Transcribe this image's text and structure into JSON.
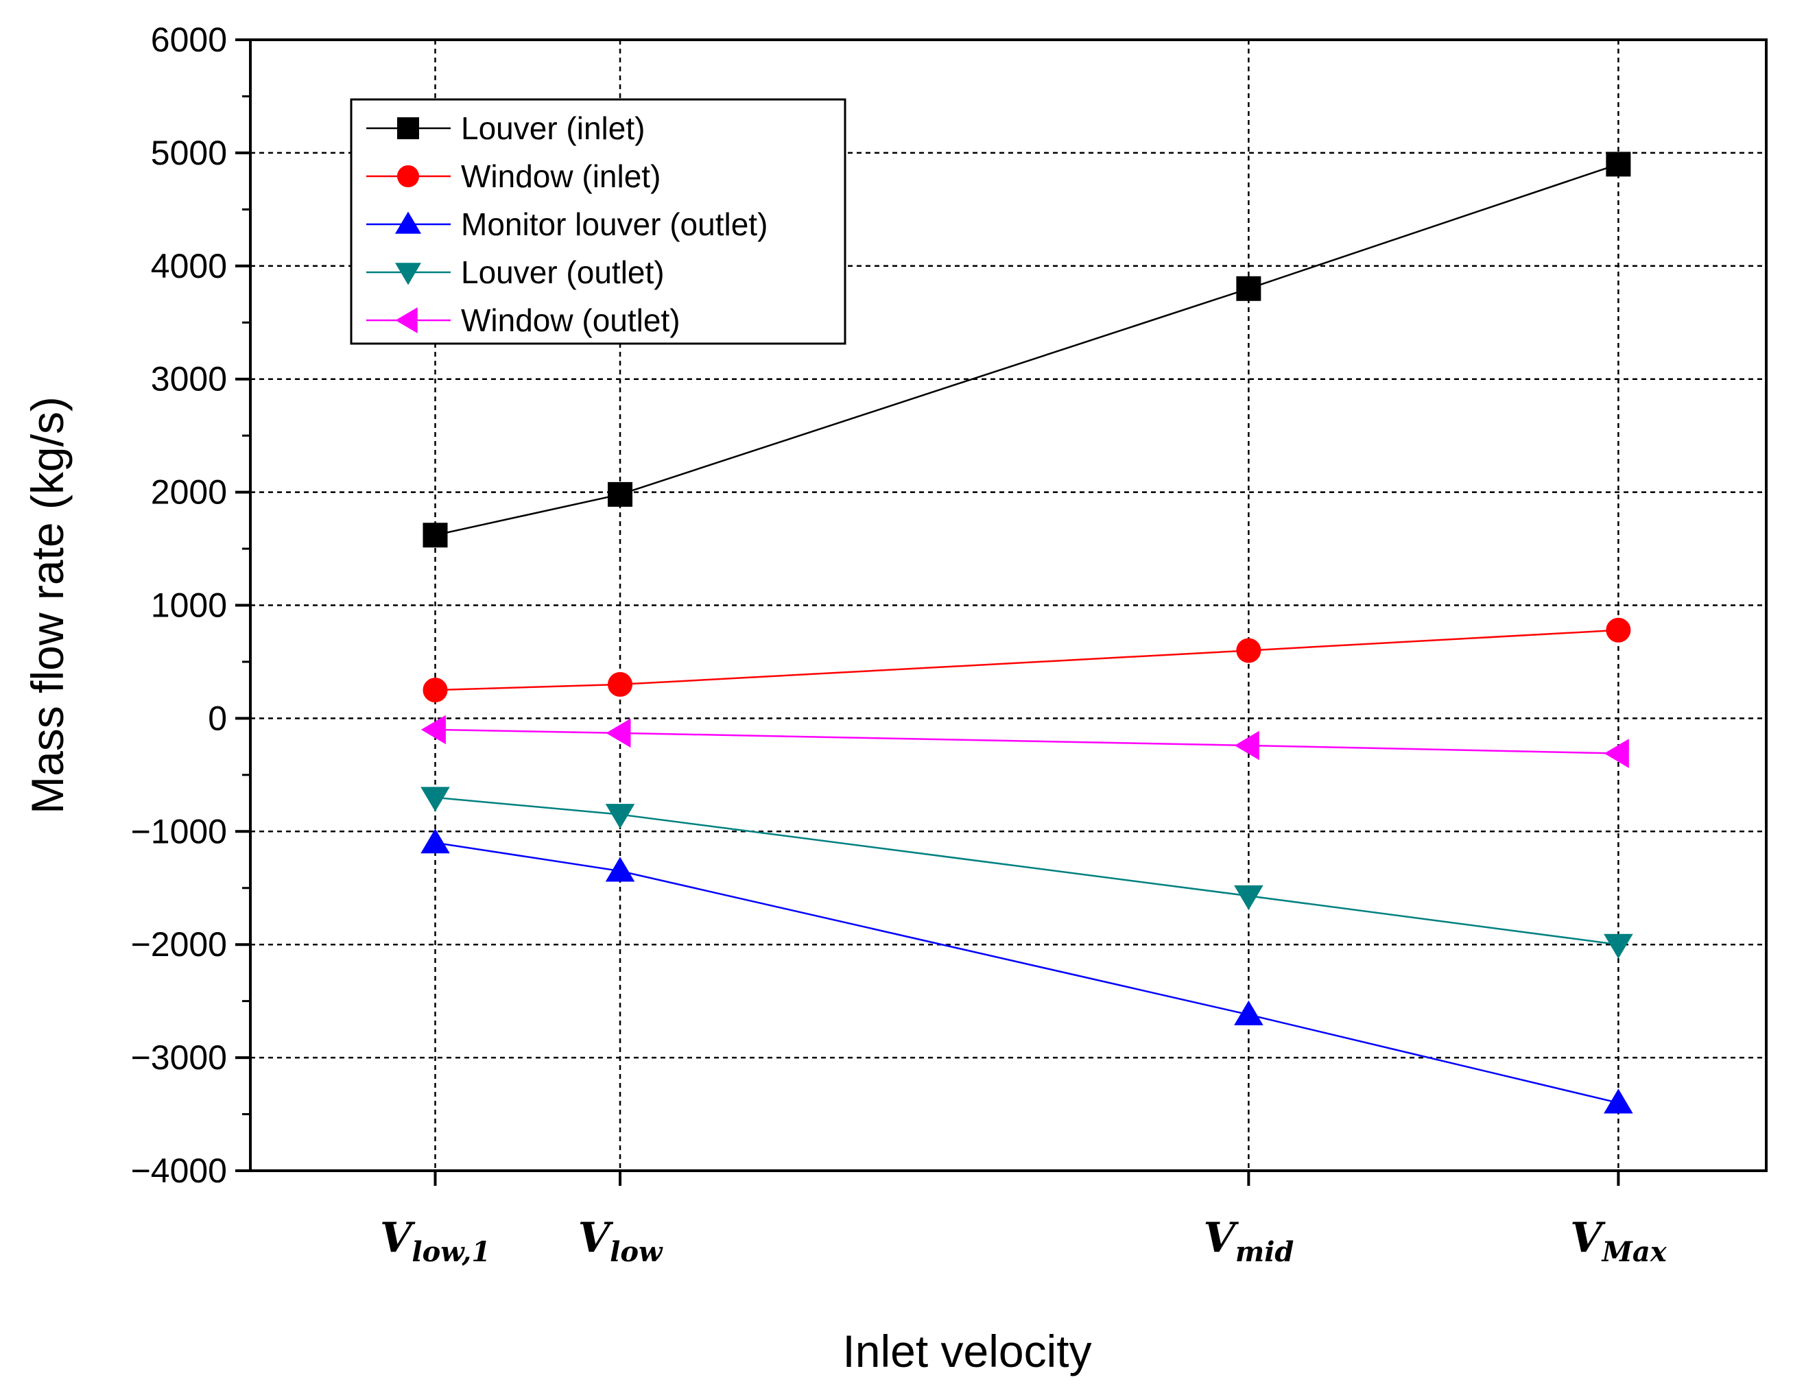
{
  "chart_data": {
    "type": "line",
    "title": "",
    "xlabel": "Inlet velocity",
    "ylabel": "Mass flow rate (kg/s)",
    "ylim": [
      -4000,
      6000
    ],
    "yticks": [
      -4000,
      -3000,
      -2000,
      -1000,
      0,
      1000,
      2000,
      3000,
      4000,
      5000,
      6000
    ],
    "ytick_labels": [
      "−4000",
      "−3000",
      "−2000",
      "−1000",
      "0",
      "1000",
      "2000",
      "3000",
      "4000",
      "5000",
      "6000"
    ],
    "grid": true,
    "legend_position": "top-left",
    "x_positions": [
      1.0,
      1.5,
      3.2,
      4.2
    ],
    "xlim": [
      0.5,
      4.6
    ],
    "categories": [
      {
        "main": "V",
        "sub": "low,1"
      },
      {
        "main": "V",
        "sub": "low"
      },
      {
        "main": "V",
        "sub": "mid"
      },
      {
        "main": "V",
        "sub": "Max"
      }
    ],
    "series": [
      {
        "name": "Louver (inlet)",
        "color": "#000000",
        "marker": "square",
        "values": [
          1620,
          1980,
          3800,
          4900
        ]
      },
      {
        "name": "Window (inlet)",
        "color": "#ff0000",
        "marker": "circle",
        "values": [
          250,
          300,
          600,
          780
        ]
      },
      {
        "name": "Monitor louver (outlet)",
        "color": "#0000ff",
        "marker": "triangle-up",
        "values": [
          -1100,
          -1350,
          -2620,
          -3400
        ]
      },
      {
        "name": "Louver (outlet)",
        "color": "#008080",
        "marker": "triangle-down",
        "values": [
          -700,
          -850,
          -1570,
          -2000
        ]
      },
      {
        "name": "Window (outlet)",
        "color": "#ff00ff",
        "marker": "triangle-left",
        "values": [
          -100,
          -130,
          -240,
          -310
        ]
      }
    ]
  }
}
